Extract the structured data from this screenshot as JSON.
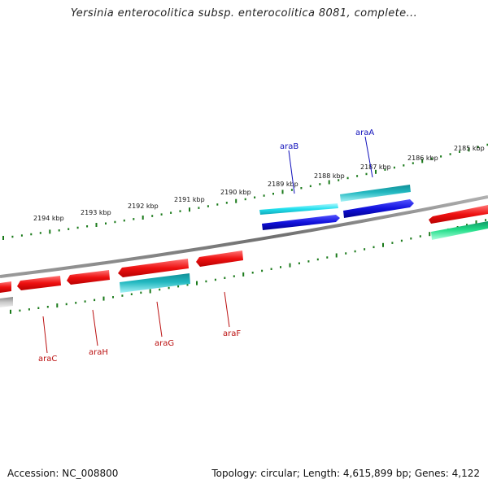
{
  "title": "Yersinia enterocolitica subsp. enterocolitica 8081, complete...",
  "footer": {
    "accession": "Accession: NC_008800",
    "summary": "Topology: circular; Length: 4,615,899 bp; Genes: 4,122"
  },
  "colors": {
    "backbone": "#808080",
    "ticks": "#1a7a1a",
    "red_gene": "#ee1111",
    "cyan_gene": "#22c8d0",
    "blue_gene": "#1111dd",
    "teal_gene": "#11a8a8",
    "green_gene": "#22dd88",
    "gray_gene": "#c0c0c0",
    "forward_label": "#1111bb",
    "reverse_label": "#bb1111"
  },
  "kbp_labels": [
    "2185 kbp",
    "2186 kbp",
    "2187 kbp",
    "2188 kbp",
    "2189 kbp",
    "2190 kbp",
    "2191 kbp",
    "2192 kbp",
    "2193 kbp",
    "2194 kbp"
  ],
  "genes": {
    "forward": [
      {
        "name": "araB"
      },
      {
        "name": "araA"
      }
    ],
    "reverse": [
      {
        "name": "araC"
      },
      {
        "name": "araH"
      },
      {
        "name": "araG"
      },
      {
        "name": "araF"
      }
    ]
  }
}
